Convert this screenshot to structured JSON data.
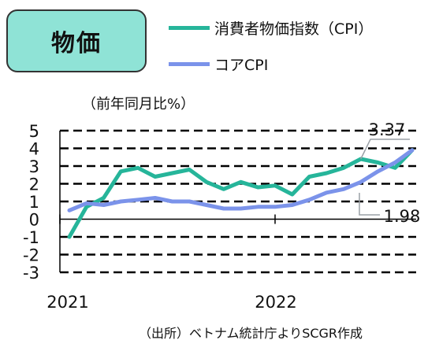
{
  "title": "物価",
  "unit_label": "（前年同月比%）",
  "source": "（出所）ベトナム統計庁よりSCGR作成",
  "colors": {
    "cpi": "#26b59a",
    "core": "#7b93ea",
    "title_bg": "#8fe3d6",
    "callout": "#9aa0a6"
  },
  "chart_data": {
    "type": "line",
    "x_tick_labels": [
      "2021",
      "2022"
    ],
    "ylim": [
      -3,
      5
    ],
    "y_ticks": [
      5,
      4,
      3,
      2,
      1,
      0,
      -1,
      -2,
      -3
    ],
    "grid": "dashed horizontal",
    "legend_placement": "top",
    "series": [
      {
        "name": "消費者物価指数（CPI）",
        "values": [
          -1.0,
          0.7,
          1.2,
          2.7,
          2.9,
          2.4,
          2.6,
          2.8,
          2.1,
          1.7,
          2.1,
          1.8,
          1.9,
          1.4,
          2.4,
          2.6,
          2.9,
          3.4,
          3.2,
          2.9,
          3.9
        ]
      },
      {
        "name": "コアCPI",
        "values": [
          0.5,
          0.9,
          0.8,
          1.0,
          1.1,
          1.2,
          1.0,
          1.0,
          0.8,
          0.6,
          0.6,
          0.7,
          0.7,
          0.8,
          1.1,
          1.5,
          1.7,
          2.1,
          2.7,
          3.2,
          3.9
        ]
      }
    ],
    "annotations": [
      "3.37",
      "1.98"
    ]
  }
}
